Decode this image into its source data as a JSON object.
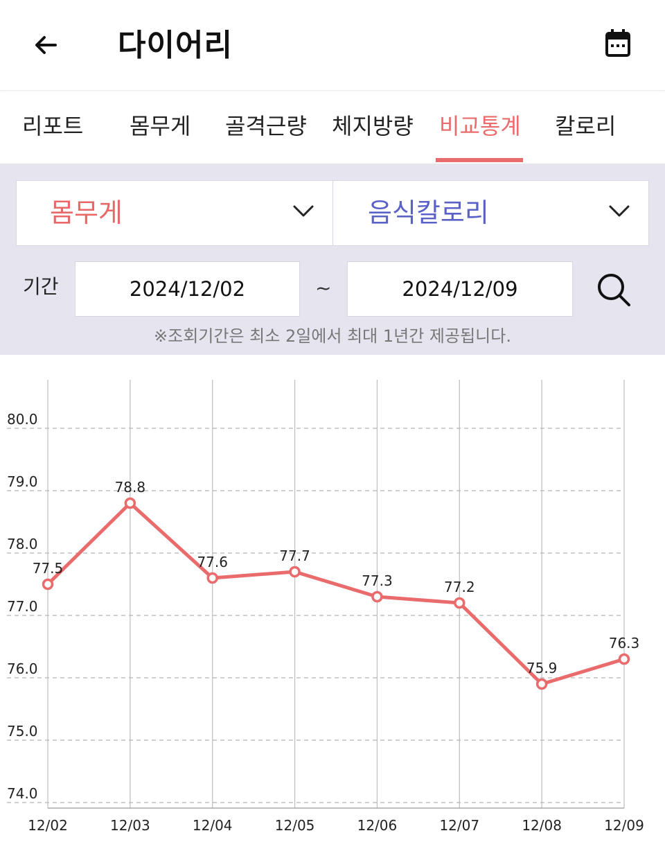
{
  "header": {
    "title": "다이어리",
    "back_icon": "arrow-left-icon",
    "calendar_icon": "calendar-icon"
  },
  "tabs": [
    {
      "label": "리포트",
      "active": false
    },
    {
      "label": "몸무게",
      "active": false
    },
    {
      "label": "골격근량",
      "active": false
    },
    {
      "label": "체지방량",
      "active": false
    },
    {
      "label": "비교통계",
      "active": true
    },
    {
      "label": "칼로리",
      "active": false
    }
  ],
  "filter": {
    "metric_left": "몸무게",
    "metric_right": "음식칼로리",
    "period_label": "기간",
    "start_date": "2024/12/02",
    "separator": "~",
    "end_date": "2024/12/09",
    "notice": "※조회기간은 최소 2일에서 최대 1년간 제공됩니다."
  },
  "colors": {
    "accent_red": "#ea6b6b",
    "accent_blue": "#5a62c8",
    "panel_bg": "#e6e4ef"
  },
  "chart_data": {
    "type": "line",
    "categories": [
      "12/02",
      "12/03",
      "12/04",
      "12/05",
      "12/06",
      "12/07",
      "12/08",
      "12/09"
    ],
    "series": [
      {
        "values": [
          77.5,
          78.8,
          77.6,
          77.7,
          77.3,
          77.2,
          75.9,
          76.3
        ],
        "color": "#ea6b6b"
      }
    ],
    "value_labels": [
      "77.5",
      "78.8",
      "77.6",
      "77.7",
      "77.3",
      "77.2",
      "75.9",
      "76.3"
    ],
    "y_ticks": [
      "74.0",
      "75.0",
      "76.0",
      "77.0",
      "78.0",
      "79.0",
      "80.0"
    ],
    "ylim": [
      74,
      80
    ],
    "grid": true
  }
}
